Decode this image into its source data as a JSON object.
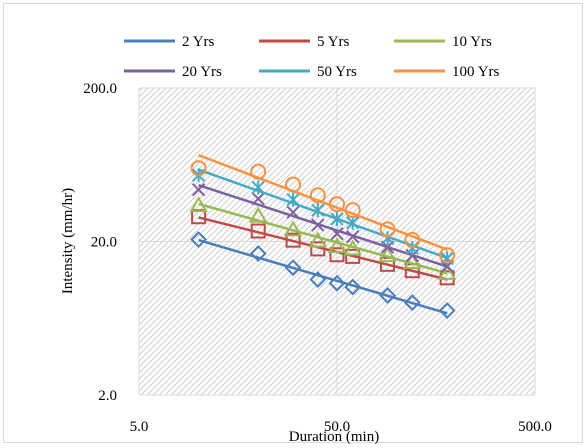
{
  "chart_data": {
    "type": "scatter",
    "xlabel": "Duration (min)",
    "ylabel": "Intensity (mm/hr)",
    "xscale": "log",
    "yscale": "log",
    "xlim": [
      5.0,
      500.0
    ],
    "ylim": [
      2.0,
      200.0
    ],
    "x_ticks": [
      "5.0",
      "50.0",
      "500.0"
    ],
    "y_ticks": [
      "2.0",
      "20.0",
      "200.0"
    ],
    "grid": true,
    "legend_position": "top",
    "x": [
      10,
      20,
      30,
      40,
      50,
      60,
      90,
      120,
      180
    ],
    "series": [
      {
        "name": "2 Yrs",
        "color": "#4a7ebb",
        "marker": "diamond",
        "values": [
          20.6,
          16.7,
          13.5,
          11.3,
          10.7,
          10.1,
          8.9,
          8.0,
          7.1
        ]
      },
      {
        "name": "5 Yrs",
        "color": "#be4b48",
        "marker": "square",
        "values": [
          29.0,
          23.4,
          20.4,
          17.9,
          16.4,
          16.0,
          14.2,
          12.9,
          11.6
        ]
      },
      {
        "name": "10 Yrs",
        "color": "#98b954",
        "marker": "triangle",
        "values": [
          34.5,
          29.5,
          24.0,
          20.3,
          18.7,
          18.0,
          16.3,
          14.7,
          12.5
        ]
      },
      {
        "name": "20 Yrs",
        "color": "#7d60a0",
        "marker": "x",
        "values": [
          43.5,
          38.0,
          31.0,
          25.6,
          22.5,
          21.5,
          18.4,
          16.2,
          13.8
        ]
      },
      {
        "name": "50 Yrs",
        "color": "#46aac5",
        "marker": "star",
        "values": [
          54.0,
          45.0,
          37.5,
          32.0,
          28.0,
          26.5,
          21.0,
          18.1,
          15.5
        ]
      },
      {
        "name": "100 Yrs",
        "color": "#f69240",
        "marker": "circle",
        "values": [
          60.0,
          57.0,
          47.0,
          40.0,
          35.0,
          32.0,
          24.0,
          20.5,
          16.3
        ]
      }
    ]
  }
}
